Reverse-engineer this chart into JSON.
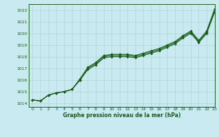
{
  "bg_color": "#c8eaf0",
  "grid_color": "#b0d4da",
  "line_color": "#1a5c1a",
  "title": "Graphe pression niveau de la mer (hPa)",
  "xlim": [
    -0.5,
    23
  ],
  "ylim": [
    1013.7,
    1022.5
  ],
  "yticks": [
    1014,
    1015,
    1016,
    1017,
    1018,
    1019,
    1020,
    1021,
    1022
  ],
  "xticks": [
    0,
    1,
    2,
    3,
    4,
    5,
    6,
    7,
    8,
    9,
    10,
    11,
    12,
    13,
    14,
    15,
    16,
    17,
    18,
    19,
    20,
    21,
    22,
    23
  ],
  "series": [
    [
      1014.3,
      1014.2,
      1014.7,
      1014.9,
      1015.0,
      1015.2,
      1016.1,
      1017.1,
      1017.5,
      1018.1,
      1018.2,
      1018.2,
      1018.2,
      1018.1,
      1018.3,
      1018.5,
      1018.7,
      1019.0,
      1019.3,
      1019.8,
      1020.2,
      1019.4,
      1020.2,
      1022.1
    ],
    [
      1014.3,
      1014.2,
      1014.7,
      1014.9,
      1015.0,
      1015.2,
      1016.0,
      1017.0,
      1017.4,
      1018.0,
      1018.1,
      1018.1,
      1018.1,
      1018.0,
      1018.2,
      1018.4,
      1018.6,
      1018.9,
      1019.2,
      1019.7,
      1020.1,
      1019.3,
      1020.1,
      1021.9
    ],
    [
      1014.3,
      1014.2,
      1014.7,
      1014.9,
      1015.0,
      1015.2,
      1016.0,
      1016.9,
      1017.3,
      1017.9,
      1018.0,
      1018.0,
      1018.0,
      1017.9,
      1018.1,
      1018.3,
      1018.5,
      1018.8,
      1019.1,
      1019.6,
      1020.0,
      1019.2,
      1020.0,
      1021.8
    ]
  ]
}
